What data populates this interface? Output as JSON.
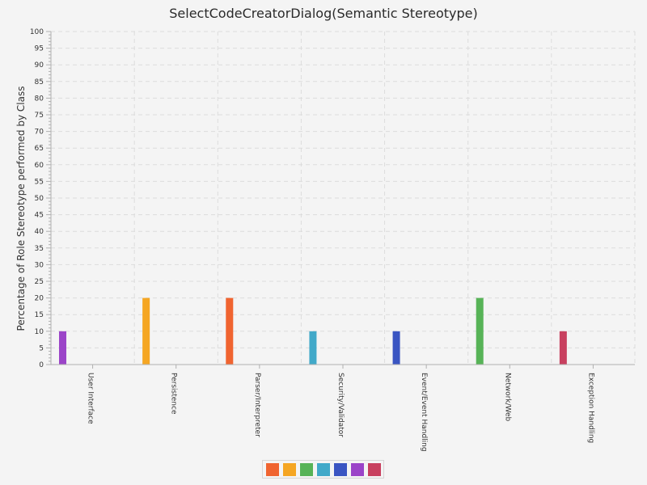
{
  "chart_data": {
    "type": "bar",
    "title": "SelectCodeCreatorDialog(Semantic Stereotype)",
    "ylabel": "Percentage of Role Stereotype performed by Class",
    "xlabel": "",
    "ylim": [
      0,
      100
    ],
    "ytick_step": 5,
    "grid": true,
    "legend_position": "bottom",
    "categories": [
      "User Interface",
      "Persistence",
      "Parser/Interpreter",
      "Security/Validator",
      "Event/Event Handling",
      "Network/Web",
      "Exception Handling"
    ],
    "series": [
      {
        "color": "#f06430",
        "values": [
          0,
          0,
          20,
          0,
          0,
          0,
          0
        ]
      },
      {
        "color": "#f5a623",
        "values": [
          0,
          20,
          0,
          0,
          0,
          0,
          0
        ]
      },
      {
        "color": "#57b357",
        "values": [
          0,
          0,
          0,
          0,
          0,
          20,
          0
        ]
      },
      {
        "color": "#41a9c9",
        "values": [
          0,
          0,
          0,
          10,
          0,
          0,
          0
        ]
      },
      {
        "color": "#3a55c2",
        "values": [
          0,
          0,
          0,
          0,
          10,
          0,
          0
        ]
      },
      {
        "color": "#9b44c8",
        "values": [
          10,
          0,
          0,
          0,
          0,
          0,
          0
        ]
      },
      {
        "color": "#c8405f",
        "values": [
          0,
          0,
          0,
          0,
          0,
          0,
          10
        ]
      }
    ]
  }
}
